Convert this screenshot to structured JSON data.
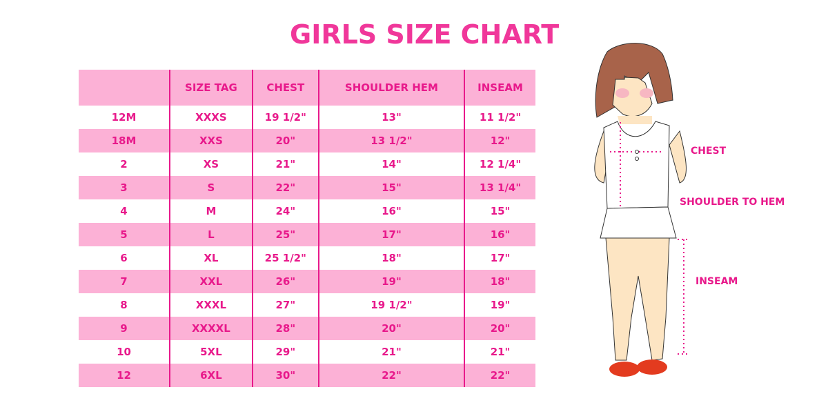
{
  "title": "GIRLS SIZE CHART",
  "table": {
    "headers": [
      "",
      "SIZE TAG",
      "CHEST",
      "SHOULDER HEM",
      "INSEAM"
    ],
    "rows": [
      [
        "12M",
        "XXXS",
        "19 1/2\"",
        "13\"",
        "11 1/2\""
      ],
      [
        "18M",
        "XXS",
        "20\"",
        "13 1/2\"",
        "12\""
      ],
      [
        "2",
        "XS",
        "21\"",
        "14\"",
        "12 1/4\""
      ],
      [
        "3",
        "S",
        "22\"",
        "15\"",
        "13 1/4\""
      ],
      [
        "4",
        "M",
        "24\"",
        "16\"",
        "15\""
      ],
      [
        "5",
        "L",
        "25\"",
        "17\"",
        "16\""
      ],
      [
        "6",
        "XL",
        "25 1/2\"",
        "18\"",
        "17\""
      ],
      [
        "7",
        "XXL",
        "26\"",
        "19\"",
        "18\""
      ],
      [
        "8",
        "XXXL",
        "27\"",
        "19 1/2\"",
        "19\""
      ],
      [
        "9",
        "XXXXL",
        "28\"",
        "20\"",
        "20\""
      ],
      [
        "10",
        "5XL",
        "29\"",
        "21\"",
        "21\""
      ],
      [
        "12",
        "6XL",
        "30\"",
        "22\"",
        "22\""
      ]
    ]
  },
  "illustration": {
    "chest_label": "CHEST",
    "shoulder_label": "SHOULDER TO HEM",
    "inseam_label": "INSEAM"
  },
  "colors": {
    "accent": "#e8198b",
    "row_pink": "#fcb1d6"
  }
}
